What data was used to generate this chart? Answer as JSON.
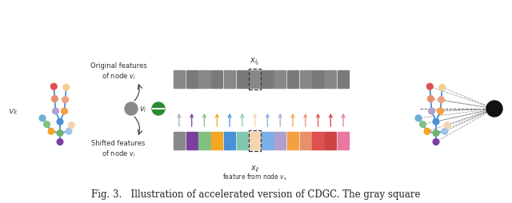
{
  "skeleton_color": "#4a90d9",
  "node_colors": {
    "head": "#7b3fa0",
    "neck": "#6db36d",
    "l_sho": "#f5a623",
    "r_sho": "#a0c4e8",
    "l_elb": "#80c080",
    "r_elb": "#f5d5b0",
    "l_wri": "#6baed6",
    "torso": "#4a90d9",
    "l_hip": "#b0a0d0",
    "r_hip": "#f5a040",
    "l_kne": "#e8906a",
    "r_kne": "#f0a080",
    "l_ank": "#e05050",
    "r_ank": "#f0d090"
  },
  "bar_colors": [
    "#888888",
    "#7b3fa0",
    "#80c080",
    "#f5a623",
    "#4a90d9",
    "#80c8b0",
    "#f5d5b0",
    "#7ab0e8",
    "#b0a0d0",
    "#f5a040",
    "#e8906a",
    "#e05050",
    "#cc4444",
    "#e878a0"
  ],
  "arrow_colors": [
    "#aaaaaa",
    "#7b3fa0",
    "#80c080",
    "#f5a623",
    "#4a90d9",
    "#80c8b0",
    "#f5d5b0",
    "#7ab0e8",
    "#b0a0d0",
    "#f5a040",
    "#e8906a",
    "#e05050",
    "#cc4444",
    "#e878a0"
  ],
  "highlight_idx": 6,
  "caption": "Fig. 3.   Illustration of accelerated version of CDGC. The gray square"
}
